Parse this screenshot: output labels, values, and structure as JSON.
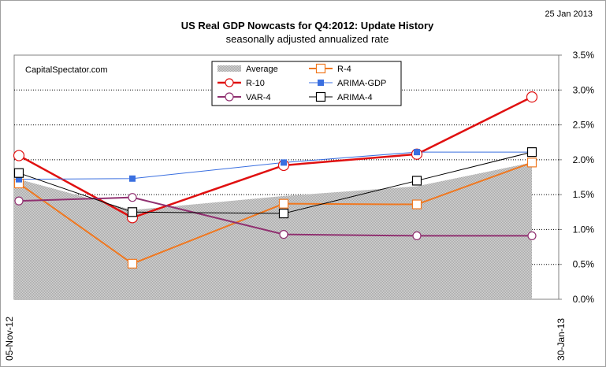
{
  "chart_data": {
    "type": "line",
    "title": "US Real GDP Nowcasts for Q4:2012: Update History",
    "subtitle": "seasonally adjusted annualized rate",
    "date_stamp": "25 Jan 2013",
    "watermark": "CapitalSpectator.com",
    "x": [
      0,
      1,
      2,
      3,
      4
    ],
    "xtick_labels": [
      "05-Nov-12",
      "30-Jan-13"
    ],
    "ylim": [
      0,
      3.5
    ],
    "yticks": [
      "0.0%",
      "0.5%",
      "1.0%",
      "1.5%",
      "2.0%",
      "2.5%",
      "3.0%",
      "3.5%"
    ],
    "ytick_values": [
      0,
      0.5,
      1.0,
      1.5,
      2.0,
      2.5,
      3.0,
      3.5
    ],
    "grid": true,
    "legend_position": "top-center",
    "series": [
      {
        "name": "Average",
        "kind": "area",
        "color": "#c0c0c0",
        "values": [
          1.72,
          1.28,
          1.48,
          1.62,
          1.96
        ]
      },
      {
        "name": "R-4",
        "kind": "line",
        "color": "#f07820",
        "marker": "square-open",
        "values": [
          1.66,
          0.51,
          1.37,
          1.36,
          1.96
        ]
      },
      {
        "name": "R-10",
        "kind": "line",
        "color": "#e01010",
        "marker": "circle-open-large",
        "values": [
          2.06,
          1.17,
          1.92,
          2.08,
          2.9
        ]
      },
      {
        "name": "ARIMA-GDP",
        "kind": "line",
        "color": "#3a6fe0",
        "marker": "square-filled",
        "values": [
          1.72,
          1.73,
          1.96,
          2.11,
          2.11
        ]
      },
      {
        "name": "VAR-4",
        "kind": "line",
        "color": "#903070",
        "marker": "circle-open",
        "values": [
          1.41,
          1.46,
          0.93,
          0.91,
          0.91
        ]
      },
      {
        "name": "ARIMA-4",
        "kind": "line",
        "color": "#000000",
        "marker": "square-open",
        "values": [
          1.81,
          1.25,
          1.23,
          1.7,
          2.11
        ]
      }
    ]
  }
}
